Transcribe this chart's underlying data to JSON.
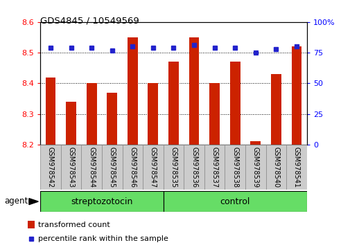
{
  "title": "GDS4845 / 10549569",
  "samples": [
    "GSM978542",
    "GSM978543",
    "GSM978544",
    "GSM978545",
    "GSM978546",
    "GSM978547",
    "GSM978535",
    "GSM978536",
    "GSM978537",
    "GSM978538",
    "GSM978539",
    "GSM978540",
    "GSM978541"
  ],
  "bar_values": [
    8.42,
    8.34,
    8.4,
    8.37,
    8.55,
    8.4,
    8.47,
    8.55,
    8.4,
    8.47,
    8.21,
    8.43,
    8.52
  ],
  "percentile_values": [
    79,
    79,
    79,
    77,
    80,
    79,
    79,
    81,
    79,
    79,
    75,
    78,
    80
  ],
  "bar_color": "#cc2200",
  "marker_color": "#2222cc",
  "ymin": 8.2,
  "ymax": 8.6,
  "yticks": [
    8.2,
    8.3,
    8.4,
    8.5,
    8.6
  ],
  "y2min": 0,
  "y2max": 100,
  "y2ticks": [
    0,
    25,
    50,
    75,
    100
  ],
  "y2ticklabels": [
    "0",
    "25",
    "50",
    "75",
    "100%"
  ],
  "group1_label": "streptozotocin",
  "group2_label": "control",
  "group1_count": 6,
  "group2_count": 7,
  "agent_label": "agent",
  "legend_bar_label": "transformed count",
  "legend_marker_label": "percentile rank within the sample",
  "group1_color": "#66dd66",
  "group2_color": "#66dd66",
  "bar_width": 0.5,
  "bg_color": "#ffffff"
}
